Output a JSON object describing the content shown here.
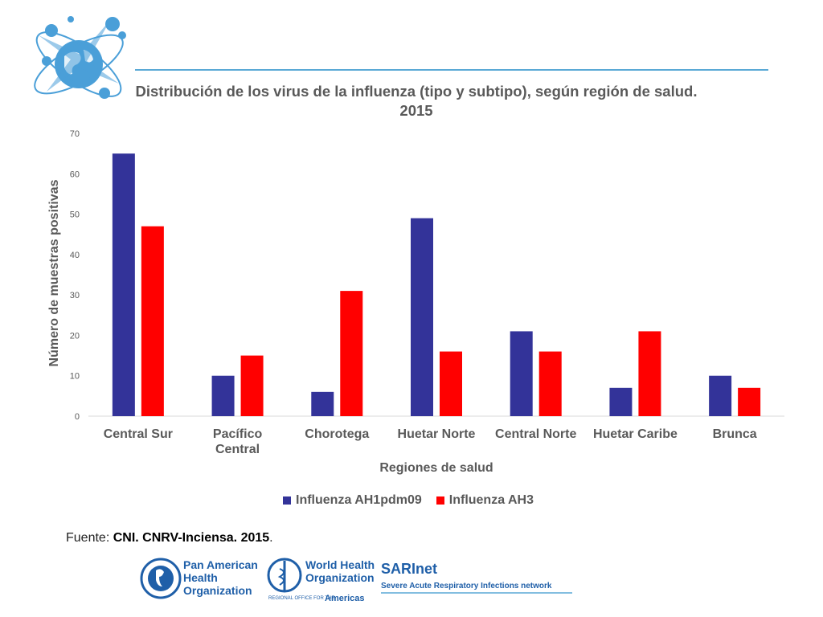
{
  "title": "Distribución de los virus de la influenza (tipo y subtipo), según región de salud.  2015",
  "source": {
    "prefix": "Fuente: ",
    "bold": "CNI. CNRV-Inciensa. 2015",
    "suffix": "."
  },
  "logos": {
    "paho": "Pan American Health Organization",
    "who_1": "World Health",
    "who_2": "Organization",
    "who_regional": "REGIONAL OFFICE FOR THE",
    "who_americas": "Americas",
    "sarinet": "SARInet",
    "sarinet_desc": "Severe Acute Respiratory Infections network"
  },
  "colors": {
    "series1": "#333399",
    "series2": "#ff0000",
    "accent": "#5aa9d6"
  },
  "chart_data": {
    "type": "bar",
    "categories": [
      "Central Sur",
      "Pacífico Central",
      "Chorotega",
      "Huetar Norte",
      "Central Norte",
      "Huetar Caribe",
      "Brunca"
    ],
    "series": [
      {
        "name": "Influenza AH1pdm09",
        "values": [
          65,
          10,
          6,
          49,
          21,
          7,
          10
        ]
      },
      {
        "name": "Influenza AH3",
        "values": [
          47,
          15,
          31,
          16,
          16,
          21,
          7
        ]
      }
    ],
    "yticks": [
      0,
      10,
      20,
      30,
      40,
      50,
      60,
      70
    ],
    "ylim": [
      0,
      70
    ],
    "xlabel": "Regiones de salud",
    "ylabel": "Número de muestras positivas",
    "grid": false,
    "legend_position": "bottom"
  }
}
